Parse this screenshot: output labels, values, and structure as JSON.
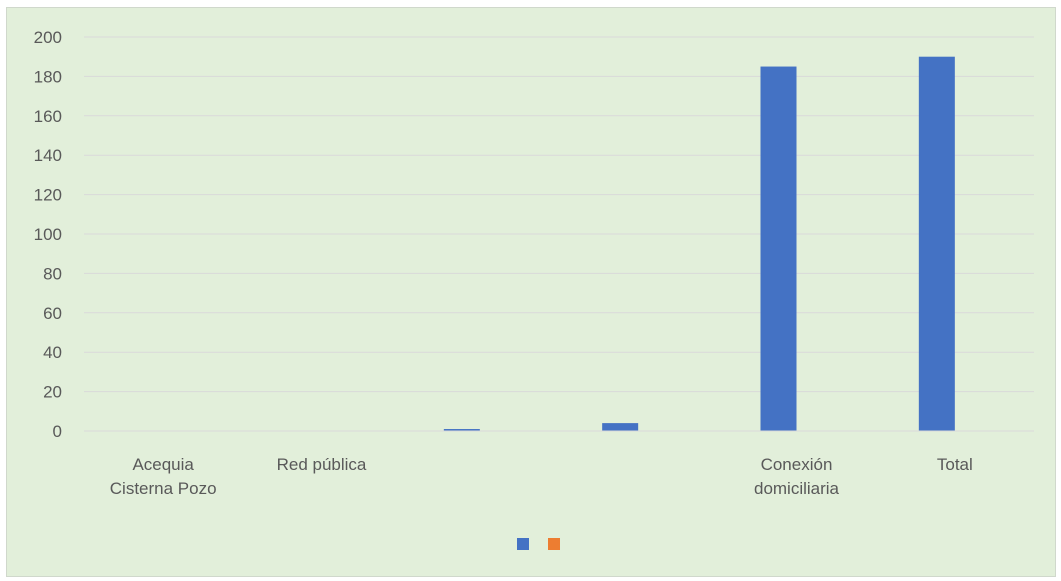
{
  "chart_data": {
    "type": "bar",
    "title": "",
    "xlabel": "",
    "ylabel": "",
    "ylim": [
      0,
      200
    ],
    "yticks": [
      0,
      20,
      40,
      60,
      80,
      100,
      120,
      140,
      160,
      180,
      200
    ],
    "yticks_text": [
      "0",
      "20",
      "40",
      "60",
      "80",
      "100",
      "120",
      "140",
      "160",
      "180",
      "200"
    ],
    "grid": true,
    "legend_position": "bottom",
    "categories": [
      [
        "Acequia",
        "Cisterna Pozo"
      ],
      [
        "Red pública"
      ],
      [
        ""
      ],
      [
        ""
      ],
      [
        "Conexión",
        "domiciliaria"
      ],
      [
        "Total"
      ]
    ],
    "series": [
      {
        "name": "",
        "color": "#4472c4",
        "values": [
          0,
          0,
          1,
          4,
          185,
          190
        ]
      },
      {
        "name": "",
        "color": "#ed7d31",
        "values": [
          0,
          0,
          0,
          0,
          0,
          0
        ]
      }
    ]
  }
}
